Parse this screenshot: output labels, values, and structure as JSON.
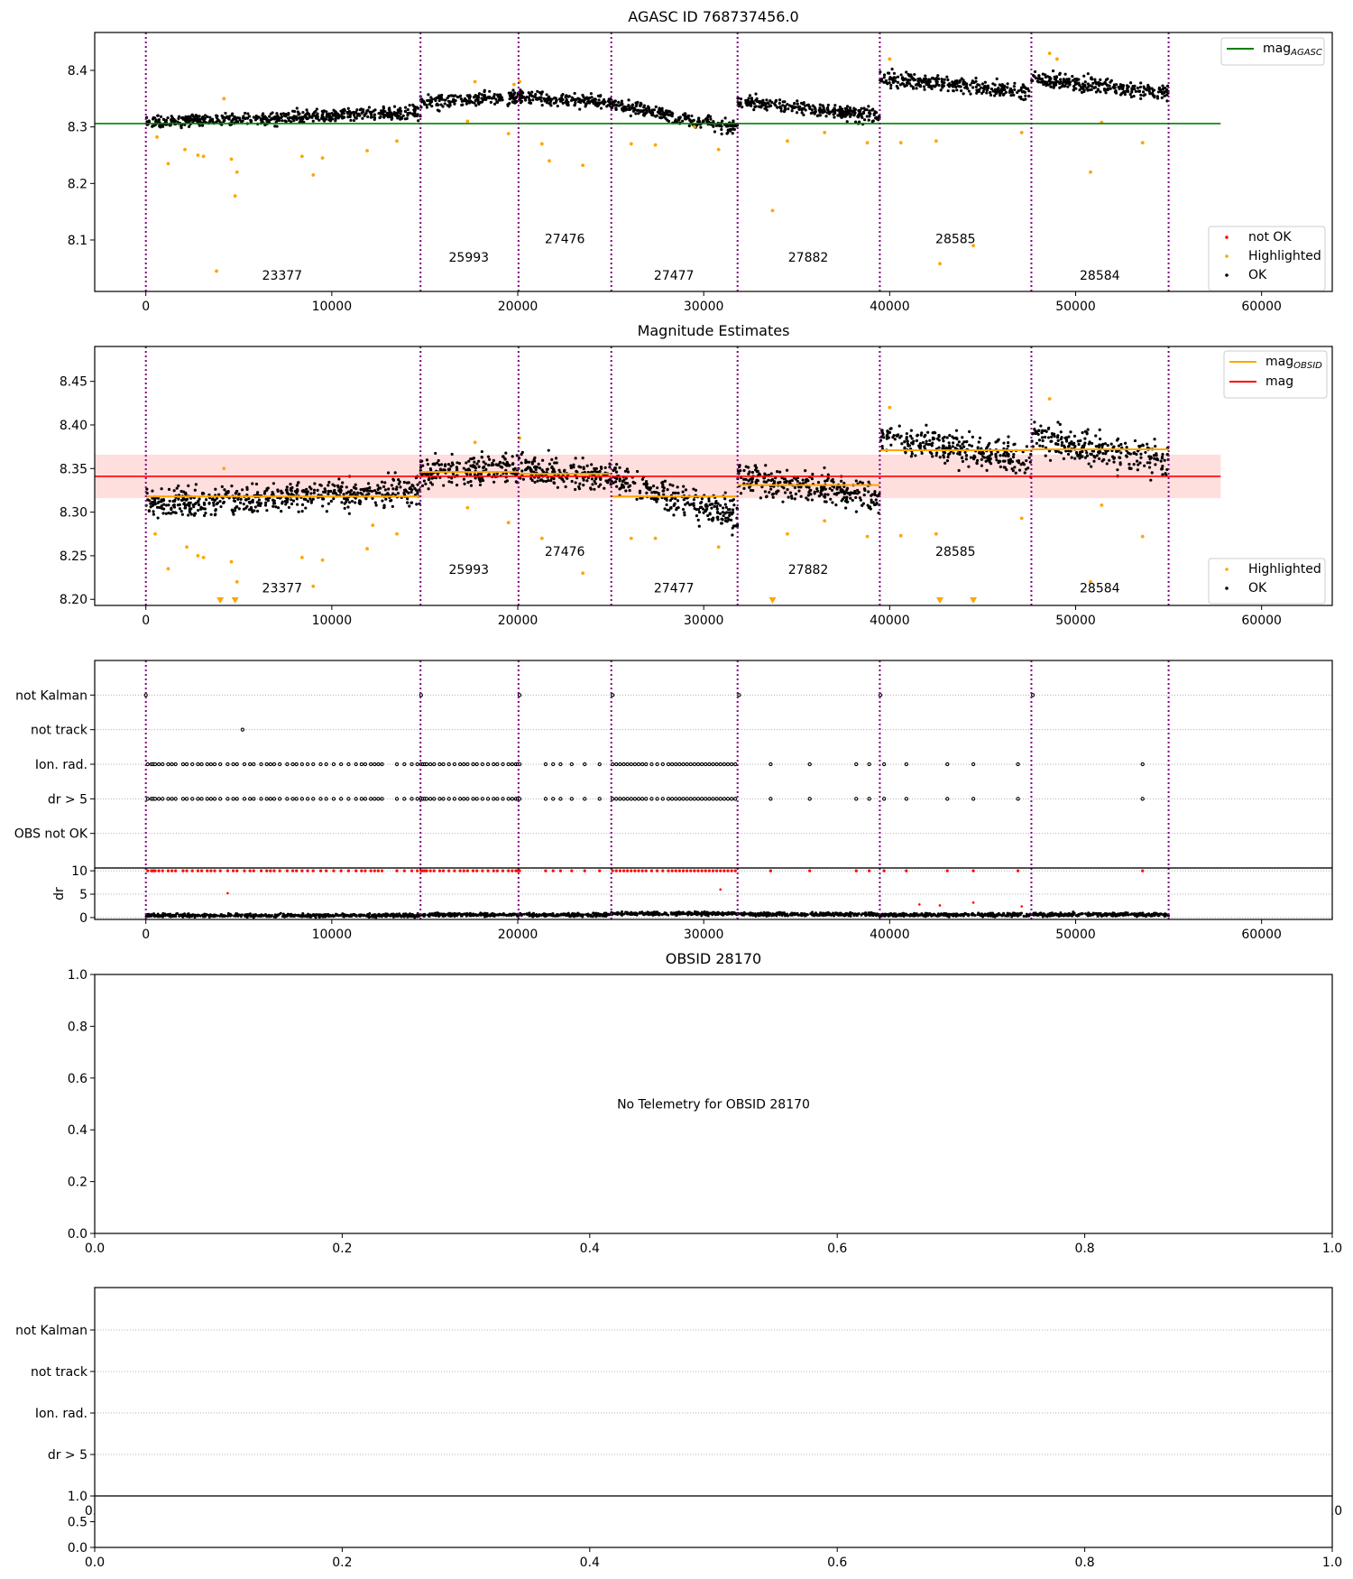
{
  "chart_data": [
    {
      "panel": "agasc",
      "type": "scatter",
      "title": "AGASC ID 768737456.0",
      "xlim": [
        -2750,
        63800
      ],
      "ylim": [
        8.009,
        8.467
      ],
      "xticks": [
        0,
        10000,
        20000,
        30000,
        40000,
        50000,
        60000
      ],
      "xtick_labels": [
        "0",
        "10000",
        "20000",
        "30000",
        "40000",
        "50000",
        "60000"
      ],
      "yticks": [
        8.1,
        8.2,
        8.3,
        8.4
      ],
      "ytick_labels": [
        "8.1",
        "8.2",
        "8.3",
        "8.4"
      ],
      "obsid_boundaries": [
        0,
        14770,
        20040,
        25030,
        31820,
        39470,
        47620,
        55000
      ],
      "obsid_labels": [
        {
          "text": "23377",
          "x": 7330,
          "y": 8.03
        },
        {
          "text": "25993",
          "x": 17370,
          "y": 8.062
        },
        {
          "text": "27476",
          "x": 22530,
          "y": 8.094
        },
        {
          "text": "27477",
          "x": 28400,
          "y": 8.03
        },
        {
          "text": "27882",
          "x": 35620,
          "y": 8.062
        },
        {
          "text": "28585",
          "x": 43540,
          "y": 8.094
        },
        {
          "text": "28584",
          "x": 51300,
          "y": 8.03
        }
      ],
      "mag_agasc": 8.306,
      "mag_agasc_xrange": [
        -2750,
        57800
      ],
      "segments": [
        {
          "start": 0,
          "end": 14770,
          "mag_start": 8.308,
          "mag_end": 8.326,
          "scatter": 0.008
        },
        {
          "start": 14770,
          "end": 20040,
          "mag_start": 8.344,
          "mag_end": 8.354,
          "scatter": 0.009
        },
        {
          "start": 20040,
          "end": 25030,
          "mag_start": 8.353,
          "mag_end": 8.344,
          "scatter": 0.008
        },
        {
          "start": 25030,
          "end": 31820,
          "mag_start": 8.34,
          "mag_end": 8.298,
          "scatter": 0.009
        },
        {
          "start": 31820,
          "end": 39470,
          "mag_start": 8.346,
          "mag_end": 8.318,
          "scatter": 0.009
        },
        {
          "start": 39470,
          "end": 47620,
          "mag_start": 8.386,
          "mag_end": 8.362,
          "scatter": 0.01
        },
        {
          "start": 47620,
          "end": 55000,
          "mag_start": 8.386,
          "mag_end": 8.358,
          "scatter": 0.01
        }
      ],
      "highlighted": [
        [
          600,
          8.282
        ],
        [
          1200,
          8.235
        ],
        [
          2100,
          8.26
        ],
        [
          2800,
          8.25
        ],
        [
          3100,
          8.248
        ],
        [
          3800,
          8.045
        ],
        [
          4200,
          8.35
        ],
        [
          4600,
          8.243
        ],
        [
          4800,
          8.178
        ],
        [
          4900,
          8.22
        ],
        [
          8400,
          8.248
        ],
        [
          9000,
          8.215
        ],
        [
          9500,
          8.245
        ],
        [
          11900,
          8.258
        ],
        [
          13500,
          8.275
        ],
        [
          17300,
          8.31
        ],
        [
          19500,
          8.288
        ],
        [
          21300,
          8.27
        ],
        [
          21700,
          8.24
        ],
        [
          23500,
          8.232
        ],
        [
          26100,
          8.27
        ],
        [
          27400,
          8.268
        ],
        [
          29500,
          8.3
        ],
        [
          30800,
          8.26
        ],
        [
          33700,
          8.152
        ],
        [
          34500,
          8.275
        ],
        [
          36500,
          8.29
        ],
        [
          38800,
          8.272
        ],
        [
          40600,
          8.272
        ],
        [
          42500,
          8.275
        ],
        [
          42700,
          8.058
        ],
        [
          44500,
          8.09
        ],
        [
          47100,
          8.29
        ],
        [
          50800,
          8.22
        ],
        [
          51400,
          8.308
        ],
        [
          53600,
          8.272
        ],
        [
          17700,
          8.38
        ],
        [
          19800,
          8.375
        ],
        [
          20100,
          8.38
        ],
        [
          40000,
          8.42
        ],
        [
          48600,
          8.43
        ],
        [
          49000,
          8.42
        ]
      ],
      "legend_upper": [
        {
          "base": "mag",
          "sub": "AGASC",
          "color": "#008000"
        }
      ],
      "legend_lower": [
        {
          "label": "not OK",
          "color": "#ff0000"
        },
        {
          "label": "Highlighted",
          "color": "#ffa500"
        },
        {
          "label": "OK",
          "color": "#000000"
        }
      ]
    },
    {
      "panel": "estimates",
      "type": "scatter",
      "title": "Magnitude Estimates",
      "xlim": [
        -2750,
        63800
      ],
      "ylim": [
        8.193,
        8.49
      ],
      "xticks": [
        0,
        10000,
        20000,
        30000,
        40000,
        50000,
        60000
      ],
      "xtick_labels": [
        "0",
        "10000",
        "20000",
        "30000",
        "40000",
        "50000",
        "60000"
      ],
      "yticks": [
        8.2,
        8.25,
        8.3,
        8.35,
        8.4,
        8.45
      ],
      "ytick_labels": [
        "8.20",
        "8.25",
        "8.30",
        "8.35",
        "8.40",
        "8.45"
      ],
      "obsid_labels": [
        {
          "text": "23377",
          "x": 7330,
          "y": 8.208
        },
        {
          "text": "25993",
          "x": 17370,
          "y": 8.229
        },
        {
          "text": "27476",
          "x": 22530,
          "y": 8.25
        },
        {
          "text": "27477",
          "x": 28400,
          "y": 8.208
        },
        {
          "text": "27882",
          "x": 35620,
          "y": 8.229
        },
        {
          "text": "28585",
          "x": 43540,
          "y": 8.25
        },
        {
          "text": "28584",
          "x": 51300,
          "y": 8.208
        }
      ],
      "mag": 8.341,
      "mag_band": [
        8.316,
        8.366
      ],
      "mag_xrange": [
        -2750,
        57800
      ],
      "mag_obsid": [
        8.318,
        8.346,
        8.344,
        8.318,
        8.331,
        8.371,
        8.372
      ],
      "segments": [
        {
          "start": 0,
          "end": 14770,
          "mag_start": 8.308,
          "mag_end": 8.326,
          "scatter": 0.012
        },
        {
          "start": 14770,
          "end": 20040,
          "mag_start": 8.344,
          "mag_end": 8.352,
          "scatter": 0.013
        },
        {
          "start": 20040,
          "end": 25030,
          "mag_start": 8.35,
          "mag_end": 8.338,
          "scatter": 0.012
        },
        {
          "start": 25030,
          "end": 31820,
          "mag_start": 8.338,
          "mag_end": 8.295,
          "scatter": 0.013
        },
        {
          "start": 31820,
          "end": 39470,
          "mag_start": 8.342,
          "mag_end": 8.316,
          "scatter": 0.013
        },
        {
          "start": 39470,
          "end": 47620,
          "mag_start": 8.385,
          "mag_end": 8.36,
          "scatter": 0.013
        },
        {
          "start": 47620,
          "end": 55000,
          "mag_start": 8.385,
          "mag_end": 8.358,
          "scatter": 0.014
        }
      ],
      "highlighted": [
        [
          500,
          8.275
        ],
        [
          1200,
          8.235
        ],
        [
          2200,
          8.26
        ],
        [
          2800,
          8.25
        ],
        [
          3100,
          8.248
        ],
        [
          4200,
          8.35
        ],
        [
          4600,
          8.243
        ],
        [
          4900,
          8.22
        ],
        [
          8400,
          8.248
        ],
        [
          9000,
          8.215
        ],
        [
          9500,
          8.245
        ],
        [
          11900,
          8.258
        ],
        [
          12200,
          8.285
        ],
        [
          13500,
          8.275
        ],
        [
          17300,
          8.305
        ],
        [
          19500,
          8.288
        ],
        [
          21300,
          8.27
        ],
        [
          23500,
          8.23
        ],
        [
          26100,
          8.27
        ],
        [
          27400,
          8.27
        ],
        [
          30800,
          8.26
        ],
        [
          34500,
          8.275
        ],
        [
          36500,
          8.29
        ],
        [
          38800,
          8.272
        ],
        [
          40600,
          8.273
        ],
        [
          42500,
          8.275
        ],
        [
          47100,
          8.293
        ],
        [
          50800,
          8.22
        ],
        [
          51400,
          8.308
        ],
        [
          53600,
          8.272
        ],
        [
          17700,
          8.38
        ],
        [
          20100,
          8.385
        ],
        [
          40000,
          8.42
        ],
        [
          48600,
          8.43
        ]
      ],
      "highlighted_below_range_x": [
        4000,
        4800,
        33700,
        42700,
        44500
      ],
      "legend_upper": [
        {
          "base": "mag",
          "sub": "OBSID",
          "color": "#ffa500"
        },
        {
          "base": "mag",
          "sub": "",
          "color": "#ff0000"
        }
      ],
      "legend_lower": [
        {
          "label": "Highlighted",
          "color": "#ffa500"
        },
        {
          "label": "OK",
          "color": "#000000"
        }
      ]
    },
    {
      "panel": "flags",
      "type": "scatter",
      "categories": [
        "OBS not OK",
        "dr > 5",
        "Ion. rad.",
        "not track",
        "not Kalman"
      ],
      "not_kalman_x": [
        0,
        14800,
        20100,
        25100,
        31900,
        39500,
        47700
      ],
      "not_track_x": [
        5200
      ],
      "ion_rad_x": [
        100,
        300,
        400,
        500,
        700,
        900,
        1200,
        1400,
        1600,
        2000,
        2200,
        2500,
        2800,
        3000,
        3300,
        3500,
        3700,
        4000,
        4400,
        4700,
        4900,
        5300,
        5600,
        5800,
        6200,
        6500,
        6700,
        6900,
        7200,
        7600,
        7900,
        8100,
        8400,
        8700,
        9000,
        9400,
        9700,
        10100,
        10500,
        10900,
        11300,
        11600,
        11800,
        12100,
        12300,
        12500,
        12700,
        13500,
        13900,
        14300,
        14600,
        14800,
        14900,
        15000,
        15100,
        15300,
        15500,
        15800,
        16000,
        16300,
        16600,
        16900,
        17100,
        17300,
        17600,
        17800,
        18100,
        18400,
        18700,
        18900,
        19200,
        19500,
        19700,
        19900,
        20000,
        20100,
        21500,
        21900,
        22300,
        22900,
        23600,
        24400,
        25100,
        25300,
        25500,
        25700,
        25900,
        26100,
        26300,
        26500,
        26700,
        26900,
        27200,
        27500,
        27800,
        28100,
        28300,
        28500,
        28700,
        28900,
        29100,
        29300,
        29500,
        29700,
        29900,
        30100,
        30300,
        30500,
        30700,
        30900,
        31100,
        31300,
        31500,
        31700,
        33600,
        35700,
        38200,
        38900,
        39700,
        40900,
        43100,
        44500,
        46900,
        53600
      ],
      "dr_gt5_x": [
        100,
        300,
        400,
        500,
        700,
        900,
        1200,
        1400,
        1600,
        2000,
        2200,
        2500,
        2800,
        3000,
        3300,
        3500,
        3700,
        4000,
        4400,
        4700,
        4900,
        5300,
        5600,
        5800,
        6200,
        6500,
        6700,
        6900,
        7200,
        7600,
        7900,
        8100,
        8400,
        8700,
        9000,
        9400,
        9700,
        10100,
        10500,
        10900,
        11300,
        11600,
        11800,
        12100,
        12300,
        12500,
        12700,
        13500,
        13900,
        14300,
        14600,
        14800,
        14900,
        15000,
        15100,
        15300,
        15500,
        15800,
        16000,
        16300,
        16600,
        16900,
        17100,
        17300,
        17600,
        17800,
        18100,
        18400,
        18700,
        18900,
        19200,
        19500,
        19700,
        19900,
        20000,
        20100,
        21500,
        21900,
        22300,
        22900,
        23600,
        24400,
        25100,
        25300,
        25500,
        25700,
        25900,
        26100,
        26300,
        26500,
        26700,
        26900,
        27200,
        27500,
        27800,
        28100,
        28300,
        28500,
        28700,
        28900,
        29100,
        29300,
        29500,
        29700,
        29900,
        30100,
        30300,
        30500,
        30700,
        30900,
        31100,
        31300,
        31500,
        31700,
        33600,
        35700,
        38200,
        38900,
        39700,
        40900,
        43100,
        44500,
        46900,
        53600
      ],
      "obs_not_ok_x": [],
      "xlim": [
        -2750,
        63800
      ],
      "ylim": [
        -1,
        5
      ],
      "dr": {
        "ylabel": "dr",
        "ylim": [
          -0.4,
          10.6
        ],
        "yticks": [
          0,
          5,
          10
        ],
        "ytick_labels": [
          "0",
          "5",
          "10"
        ],
        "clip_value": 10,
        "not_ok_outliers": [
          [
            4400,
            5.2
          ],
          [
            30900,
            6.0
          ],
          [
            41600,
            2.8
          ],
          [
            42700,
            2.6
          ],
          [
            44500,
            3.2
          ],
          [
            47100,
            2.4
          ]
        ],
        "segment_levels": [
          0.45,
          0.6,
          0.55,
          0.85,
          0.7,
          0.6,
          0.65
        ]
      },
      "xticks": [
        0,
        10000,
        20000,
        30000,
        40000,
        50000,
        60000
      ],
      "xtick_labels": [
        "0",
        "10000",
        "20000",
        "30000",
        "40000",
        "50000",
        "60000"
      ]
    },
    {
      "panel": "obsid",
      "type": "scatter",
      "title": "OBSID 28170",
      "message": "No Telemetry for OBSID 28170",
      "xlim": [
        0,
        1
      ],
      "ylim": [
        0,
        1
      ],
      "xtick_labels": [
        "0.0",
        "0.2",
        "0.4",
        "0.6",
        "0.8",
        "1.0"
      ],
      "ytick_labels": [
        "0.0",
        "0.2",
        "0.4",
        "0.6",
        "0.8",
        "1.0"
      ]
    },
    {
      "panel": "obsid-flags",
      "type": "scatter",
      "categories": [
        "dr > 5",
        "Ion. rad.",
        "not track",
        "not Kalman"
      ],
      "hidden_xtick_labels": [
        "0.0",
        "1.0"
      ],
      "lower": {
        "xlim": [
          0,
          1
        ],
        "ylim": [
          0,
          1
        ],
        "xtick_labels": [
          "0.0",
          "0.2",
          "0.4",
          "0.6",
          "0.8",
          "1.0"
        ],
        "ytick_labels": [
          "0.0",
          "0.5",
          "1.0"
        ]
      }
    }
  ]
}
